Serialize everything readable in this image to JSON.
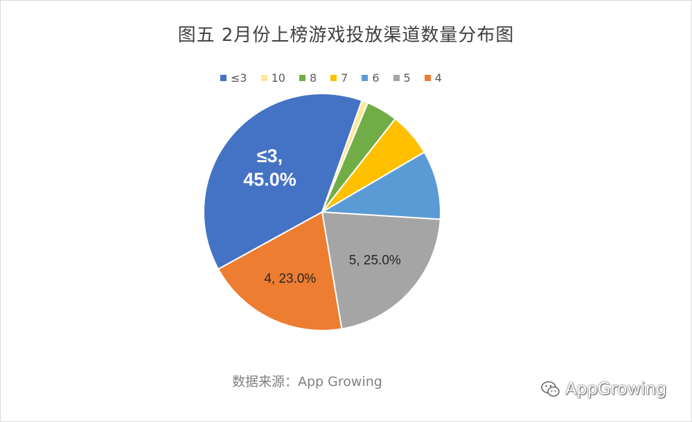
{
  "chart_data": {
    "type": "pie",
    "title": "图五 2月份上榜游戏投放渠道数量分布图",
    "slices": [
      {
        "label": "≤3",
        "value": 45.0,
        "color": "#4472C4"
      },
      {
        "label": "10",
        "value": 1.0,
        "color": "#FFE699"
      },
      {
        "label": "8",
        "value": 5.0,
        "color": "#70AD47"
      },
      {
        "label": "7",
        "value": 7.0,
        "color": "#FFC000"
      },
      {
        "label": "6",
        "value": 11.0,
        "color": "#5B9BD5"
      },
      {
        "label": "5",
        "value": 25.0,
        "color": "#A5A5A5"
      },
      {
        "label": "4",
        "value": 23.0,
        "color": "#ED7D31"
      }
    ],
    "legend_order": [
      "≤3",
      "10",
      "8",
      "7",
      "6",
      "5",
      "4"
    ],
    "legend_position": "top",
    "data_labels": [
      {
        "slice": "≤3",
        "line1": "≤3,",
        "line2": "45.0%"
      },
      {
        "slice": "5",
        "line1": "5, 25.0%"
      },
      {
        "slice": "4",
        "line1": "4, 23.0%"
      }
    ]
  },
  "source_text": "数据来源：App Growing",
  "watermark": {
    "text": "AppGrowing",
    "icon": "wechat-icon"
  }
}
